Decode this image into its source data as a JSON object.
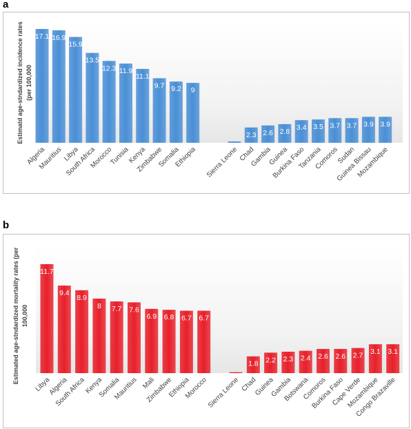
{
  "chart_data": [
    {
      "type": "bar",
      "panel": "a",
      "title": "",
      "ylabel_lines": [
        "Estimatd age-stndardized incidence rates",
        "(per 100,000"
      ],
      "xlabel": "",
      "color": "#4a8fd6",
      "groups": [
        {
          "categories": [
            "Algeria",
            "Mauritius",
            "Libya",
            "South Africa",
            "Morocco",
            "Tunisia",
            "Kenya",
            "Zimbabwe",
            "Somalia",
            "Ethiopia"
          ],
          "values": [
            17.1,
            16.9,
            15.9,
            13.5,
            12.3,
            11.9,
            11.1,
            9.7,
            9.2,
            9
          ],
          "labels": [
            "17.1",
            "16.9",
            "15.9",
            "13.5",
            "12.3",
            "11.9",
            "11.1",
            "9.7",
            "9.2",
            "9"
          ]
        },
        {
          "categories": [
            "Sierra Leone",
            "Chad",
            "Gambia",
            "Guinea",
            "Burkina Faso",
            "Tanzania",
            "Comoros",
            "Sudan",
            "Guinea Bissau",
            "Mozambique"
          ],
          "values": [
            0.2,
            2.3,
            2.6,
            2.8,
            3.4,
            3.5,
            3.7,
            3.7,
            3.9,
            3.9
          ],
          "labels": [
            "0.2",
            "2.3",
            "2.6",
            "2.8",
            "3.4",
            "3.5",
            "3.7",
            "3.7",
            "3.9",
            "3.9"
          ]
        }
      ]
    },
    {
      "type": "bar",
      "panel": "b",
      "title": "",
      "ylabel_lines": [
        "Estimated age-stndardized mortality  rates (per",
        "100,000"
      ],
      "xlabel": "",
      "color": "#e8202a",
      "groups": [
        {
          "categories": [
            "Libya",
            "Algeria",
            "South Africa",
            "Kenya",
            "Somalia",
            "Mauritius",
            "Mali",
            "Zimbabwe",
            "Ethiopia",
            "Morocco"
          ],
          "values": [
            11.7,
            9.4,
            8.9,
            8,
            7.7,
            7.6,
            6.9,
            6.8,
            6.7,
            6.7
          ],
          "labels": [
            "11.7",
            "9.4",
            "8.9",
            "8",
            "7.7",
            "7.6",
            "6.9",
            "6.8",
            "6.7",
            "6.7"
          ]
        },
        {
          "categories": [
            "Sierra Leone",
            "Chad",
            "Guinea",
            "Gambia",
            "Botswana",
            "Comoros",
            "Burkina Faso",
            "Cape Verde",
            "Mozambique",
            "Congo Brazaville"
          ],
          "values": [
            0.1,
            1.8,
            2.2,
            2.3,
            2.4,
            2.6,
            2.6,
            2.7,
            3.1,
            3.1
          ],
          "labels": [
            "0.1",
            "1.8",
            "2.2",
            "2.3",
            "2.4",
            "2.6",
            "2.6",
            "2.7",
            "3.1",
            "3.1"
          ]
        }
      ]
    }
  ]
}
